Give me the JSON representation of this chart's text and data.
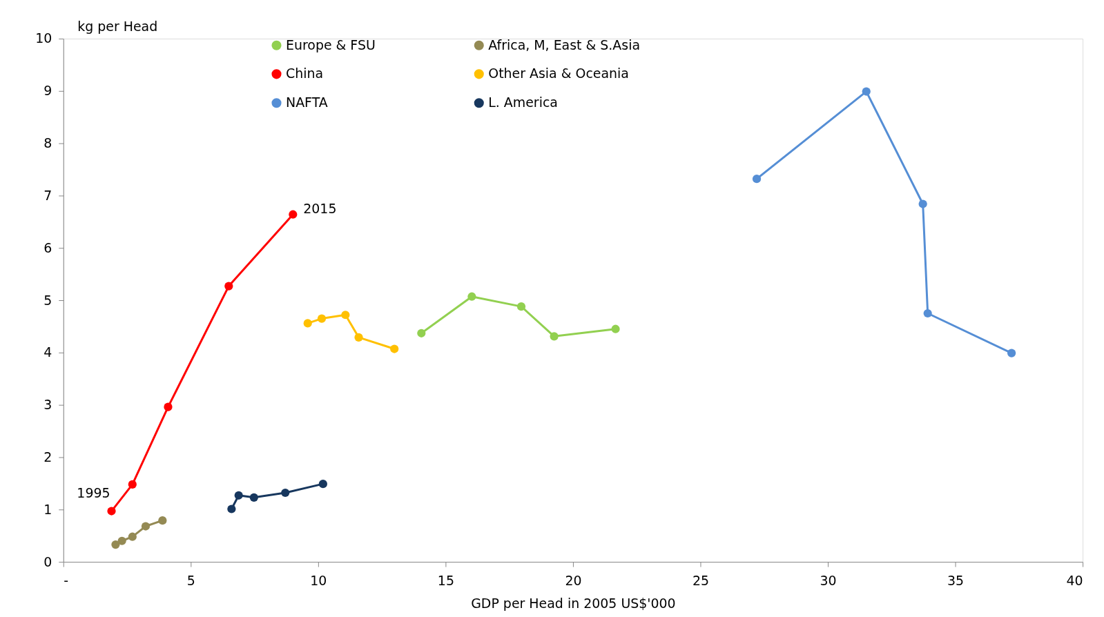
{
  "chart_data": {
    "type": "line",
    "xlabel": "GDP per Head in 2005 US$'000",
    "ylabel": "kg per Head",
    "xlim": [
      0,
      40
    ],
    "xticks": [
      {
        "value": 0,
        "label": "-"
      },
      5,
      10,
      15,
      20,
      25,
      30,
      35,
      40
    ],
    "ylim": [
      0,
      10
    ],
    "yticks": [
      0,
      1,
      2,
      3,
      4,
      5,
      6,
      7,
      8,
      9,
      10
    ],
    "grid": false,
    "legend": "top",
    "marker": "circle",
    "line_style": "solid",
    "series": [
      {
        "name": "Europe & FSU",
        "color": "#92d050",
        "x": [
          14.05,
          16.03,
          17.97,
          19.26,
          21.67
        ],
        "values": [
          4.37,
          5.07,
          4.88,
          4.31,
          4.45
        ]
      },
      {
        "name": "Africa, M, East & S.Asia",
        "color": "#948a54",
        "x": [
          2.05,
          2.3,
          2.71,
          3.23,
          3.89
        ],
        "values": [
          0.33,
          0.4,
          0.48,
          0.68,
          0.79
        ]
      },
      {
        "name": "China",
        "color": "#ff0000",
        "x": [
          1.89,
          2.71,
          4.11,
          6.49,
          9.01
        ],
        "values": [
          0.97,
          1.48,
          2.96,
          5.27,
          6.64
        ]
      },
      {
        "name": "Other Asia & Oceania",
        "color": "#ffc000",
        "x": [
          9.59,
          10.14,
          11.07,
          11.59,
          12.99
        ],
        "values": [
          4.56,
          4.65,
          4.72,
          4.29,
          4.07
        ]
      },
      {
        "name": "NAFTA",
        "color": "#558ed5",
        "x": [
          27.21,
          31.51,
          33.73,
          33.92,
          37.21
        ],
        "values": [
          7.32,
          8.99,
          6.84,
          4.75,
          3.99
        ]
      },
      {
        "name": "L. America",
        "color": "#17375e",
        "x": [
          6.6,
          6.88,
          7.48,
          8.71,
          10.19
        ],
        "values": [
          1.01,
          1.27,
          1.23,
          1.32,
          1.49
        ]
      }
    ],
    "annotations": [
      {
        "text": "1995",
        "x": 1.89,
        "y": 0.97
      },
      {
        "text": "2015",
        "x": 9.01,
        "y": 6.64
      }
    ]
  }
}
